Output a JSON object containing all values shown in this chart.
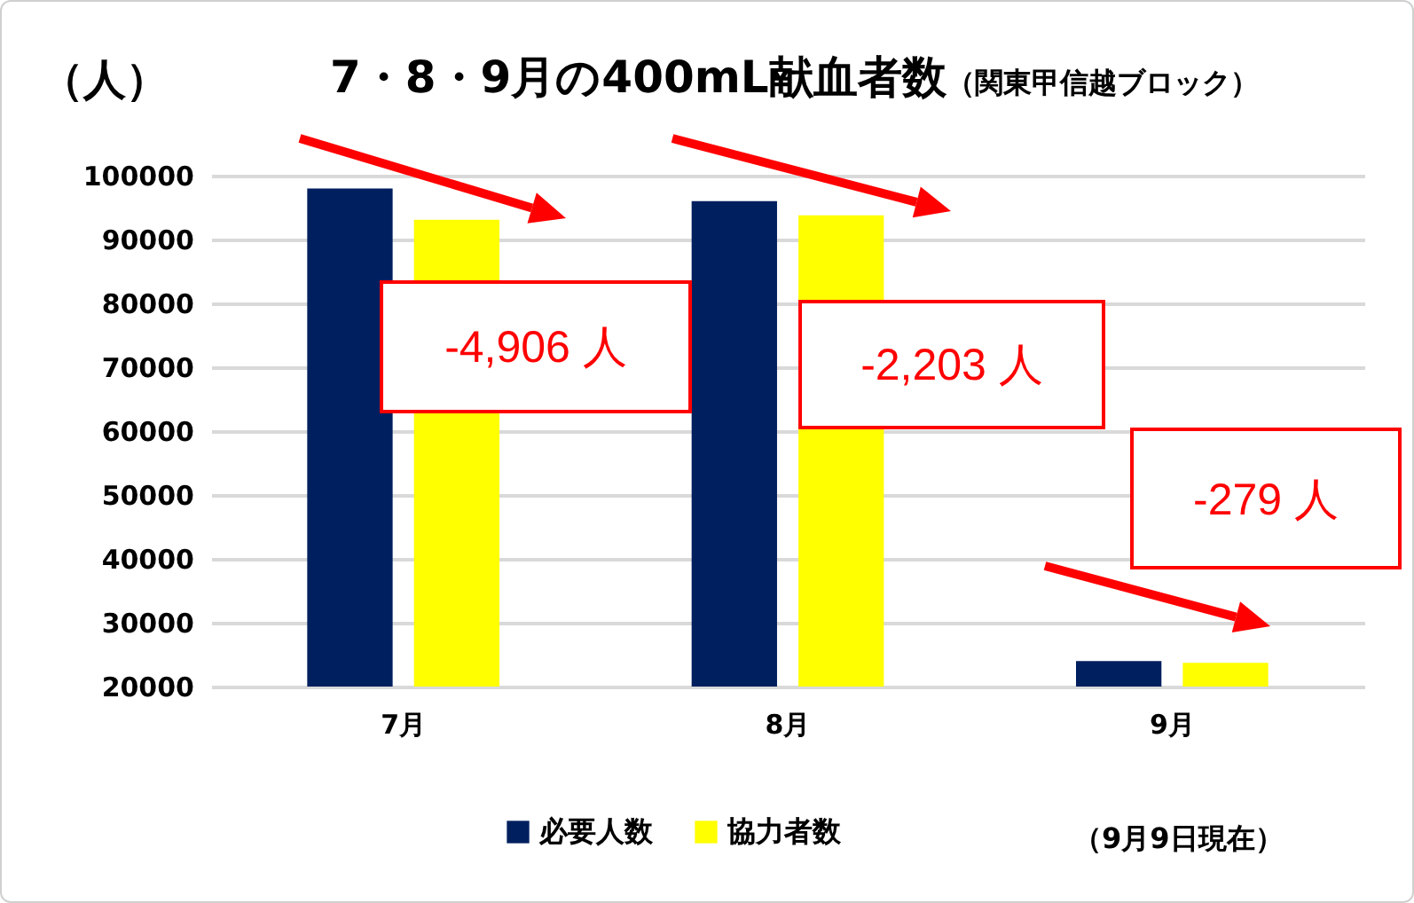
{
  "chart_data": {
    "type": "bar",
    "title": "7・8・9月の400mL献血者数",
    "subtitle": "（関東甲信越ブロック）",
    "ylabel": "（人）",
    "categories": [
      "7月",
      "8月",
      "9月"
    ],
    "series": [
      {
        "name": "必要人数",
        "color": "#001f5f",
        "values": [
          98000,
          96000,
          24000
        ]
      },
      {
        "name": "協力者数",
        "color": "#ffff00",
        "values": [
          93100,
          93800,
          23700
        ]
      }
    ],
    "ylim": [
      20000,
      100000
    ],
    "yticks": [
      20000,
      30000,
      40000,
      50000,
      60000,
      70000,
      80000,
      90000,
      100000
    ],
    "grid": "y",
    "legend": "bottom",
    "annotations": [
      "-4,906 人",
      "-2,203 人",
      "-279 人",
      "（9月9日現在）"
    ]
  }
}
